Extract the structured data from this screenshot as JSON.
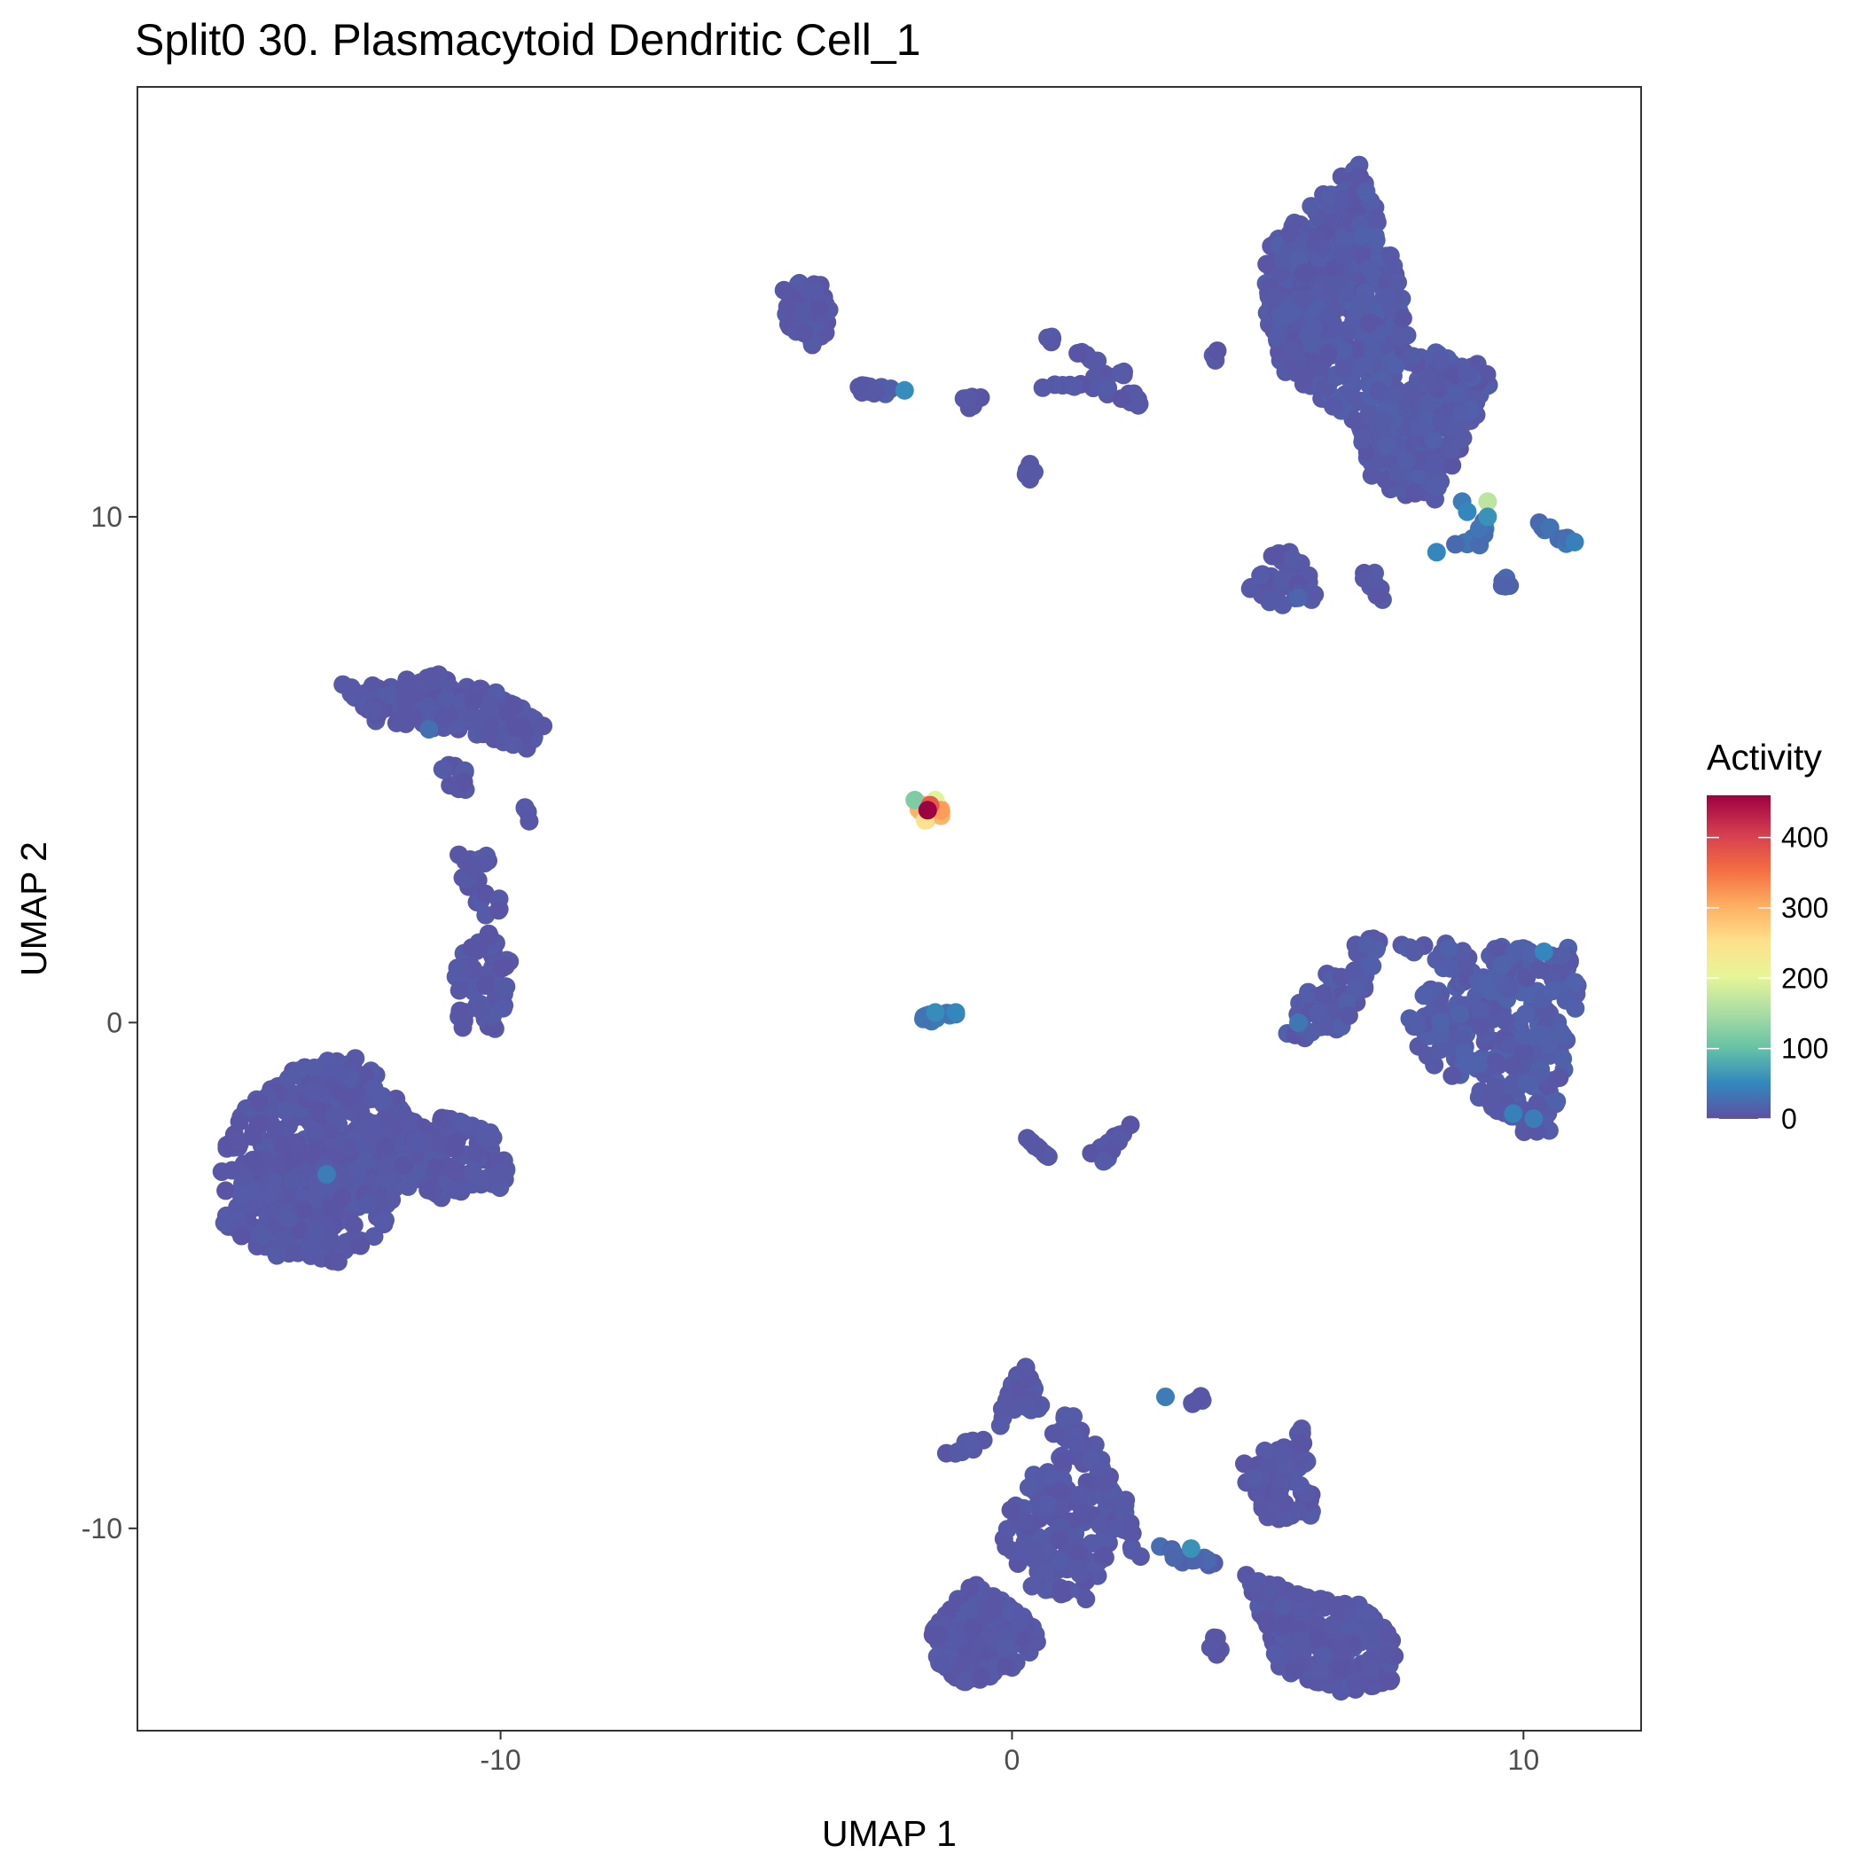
{
  "chart_data": {
    "type": "scatter",
    "title": "Split0 30. Plasmacytoid Dendritic Cell_1",
    "xlabel": "UMAP 1",
    "ylabel": "UMAP 2",
    "xlim": [
      -17.1,
      12.3
    ],
    "ylim": [
      -14.0,
      18.5
    ],
    "x_ticks": [
      -10,
      0,
      10
    ],
    "x_tick_labels": [
      "-10",
      "0",
      "10"
    ],
    "y_ticks": [
      -10,
      0,
      10
    ],
    "y_tick_labels": [
      "-10",
      "0",
      "10"
    ],
    "grid": false,
    "legend": {
      "title": "Activity",
      "position": "right",
      "ticks": [
        0,
        100,
        200,
        300,
        400
      ],
      "tick_labels": [
        "0",
        "100",
        "200",
        "300",
        "400"
      ],
      "range": [
        0,
        460
      ],
      "colormap": "Spectral (reversed)",
      "colors": [
        "#5E4FA2",
        "#3288BD",
        "#66C2A5",
        "#ABDDA4",
        "#E6F598",
        "#FEE08B",
        "#FDAE61",
        "#F46D43",
        "#D53E4F",
        "#9E0142"
      ]
    },
    "clusters": [
      {
        "shape": [
          [
            -15.5,
            -2.7
          ],
          [
            -15.4,
            -4.0
          ],
          [
            -14.5,
            -4.6
          ],
          [
            -13.2,
            -4.8
          ],
          [
            -12.3,
            -4.1
          ],
          [
            -12.0,
            -3.2
          ],
          [
            -11.2,
            -3.5
          ],
          [
            -10.0,
            -3.3
          ],
          [
            -9.7,
            -2.6
          ],
          [
            -10.3,
            -2.0
          ],
          [
            -11.8,
            -1.8
          ],
          [
            -12.8,
            -0.6
          ],
          [
            -14.0,
            -0.9
          ],
          [
            -15.0,
            -1.7
          ]
        ],
        "count": 620,
        "activity": 8
      },
      {
        "shape": [
          [
            -10.8,
            -0.1
          ],
          [
            -10.0,
            -0.2
          ],
          [
            -9.8,
            1.2
          ],
          [
            -10.4,
            2.0
          ],
          [
            -10.9,
            1.1
          ]
        ],
        "count": 70,
        "activity": 8
      },
      {
        "shape": [
          [
            -10.2,
            1.8
          ],
          [
            -9.9,
            2.5
          ],
          [
            -10.4,
            3.6
          ],
          [
            -10.9,
            3.6
          ],
          [
            -10.7,
            2.6
          ]
        ],
        "count": 20,
        "activity": 8
      },
      {
        "shape": [
          [
            -13.1,
            6.7
          ],
          [
            -11.2,
            6.9
          ],
          [
            -10.0,
            6.5
          ],
          [
            -9.1,
            5.9
          ],
          [
            -9.5,
            5.4
          ],
          [
            -11.0,
            5.8
          ],
          [
            -12.4,
            5.9
          ]
        ],
        "count": 190,
        "activity": 8
      },
      {
        "shape": [
          [
            -11.3,
            5.2
          ],
          [
            -10.6,
            5.0
          ],
          [
            -10.5,
            4.3
          ],
          [
            -11.0,
            4.6
          ]
        ],
        "count": 14,
        "activity": 8
      },
      {
        "shape": [
          [
            -9.6,
            4.3
          ],
          [
            -9.2,
            4.2
          ],
          [
            -9.4,
            3.9
          ]
        ],
        "count": 4,
        "activity": 8
      },
      {
        "shape": [
          [
            -4.5,
            14.7
          ],
          [
            -3.7,
            14.6
          ],
          [
            -3.5,
            13.9
          ],
          [
            -3.8,
            13.3
          ],
          [
            -4.4,
            13.8
          ]
        ],
        "count": 60,
        "activity": 8
      },
      {
        "shape": [
          [
            -3.2,
            12.6
          ],
          [
            -2.3,
            12.6
          ],
          [
            -2.4,
            12.3
          ],
          [
            -3.0,
            12.4
          ]
        ],
        "count": 14,
        "activity": 10
      },
      {
        "shape": [
          [
            -1.0,
            12.4
          ],
          [
            -0.4,
            12.5
          ],
          [
            -0.8,
            12.0
          ]
        ],
        "count": 7,
        "activity": 8
      },
      {
        "shape": [
          [
            0.3,
            12.5
          ],
          [
            1.6,
            12.8
          ],
          [
            2.2,
            13.0
          ],
          [
            2.6,
            12.1
          ],
          [
            2.0,
            12.4
          ],
          [
            0.9,
            12.6
          ]
        ],
        "count": 26,
        "activity": 8
      },
      {
        "shape": [
          [
            1.1,
            13.3
          ],
          [
            1.8,
            13.2
          ],
          [
            1.6,
            12.9
          ]
        ],
        "count": 6,
        "activity": 8
      },
      {
        "shape": [
          [
            0.6,
            13.6
          ],
          [
            0.9,
            13.6
          ],
          [
            0.8,
            13.4
          ]
        ],
        "count": 4,
        "activity": 8
      },
      {
        "shape": [
          [
            0.2,
            11.1
          ],
          [
            0.5,
            11.0
          ],
          [
            0.3,
            10.6
          ]
        ],
        "count": 5,
        "activity": 8
      },
      {
        "shape": [
          [
            3.7,
            13.3
          ],
          [
            4.2,
            13.3
          ],
          [
            3.9,
            12.8
          ]
        ],
        "count": 4,
        "activity": 8
      },
      {
        "shape": [
          [
            5.0,
            15.3
          ],
          [
            6.2,
            16.5
          ],
          [
            6.8,
            17.1
          ],
          [
            7.4,
            15.2
          ],
          [
            7.9,
            13.3
          ],
          [
            8.8,
            13.2
          ],
          [
            9.5,
            12.8
          ],
          [
            9.0,
            11.8
          ],
          [
            8.5,
            10.8
          ],
          [
            8.2,
            10.2
          ],
          [
            7.6,
            10.4
          ],
          [
            7.0,
            10.8
          ],
          [
            6.8,
            11.7
          ],
          [
            6.2,
            12.2
          ],
          [
            5.3,
            12.9
          ],
          [
            4.9,
            13.8
          ]
        ],
        "count": 760,
        "activity": 10
      },
      {
        "shape": [
          [
            4.6,
            8.5
          ],
          [
            5.3,
            9.6
          ],
          [
            5.8,
            8.9
          ],
          [
            6.0,
            8.4
          ],
          [
            5.3,
            8.2
          ]
        ],
        "count": 45,
        "activity": 8
      },
      {
        "shape": [
          [
            6.8,
            8.9
          ],
          [
            7.1,
            9.0
          ],
          [
            7.3,
            8.2
          ],
          [
            6.9,
            8.5
          ]
        ],
        "count": 8,
        "activity": 8
      },
      {
        "shape": [
          [
            8.3,
            9.4
          ],
          [
            9.1,
            9.7
          ],
          [
            9.4,
            10.3
          ],
          [
            9.2,
            9.4
          ]
        ],
        "count": 12,
        "activity": 30
      },
      {
        "shape": [
          [
            9.5,
            8.9
          ],
          [
            9.8,
            8.7
          ],
          [
            9.6,
            8.4
          ]
        ],
        "count": 6,
        "activity": 20
      },
      {
        "shape": [
          [
            10.3,
            9.9
          ],
          [
            11.0,
            9.6
          ],
          [
            10.9,
            9.4
          ],
          [
            10.4,
            9.7
          ]
        ],
        "count": 9,
        "activity": 30
      },
      {
        "shape": [
          [
            5.5,
            0.4
          ],
          [
            6.8,
            1.7
          ],
          [
            7.3,
            1.8
          ],
          [
            7.0,
            0.8
          ],
          [
            6.4,
            -0.2
          ],
          [
            5.3,
            -0.4
          ]
        ],
        "count": 70,
        "activity": 10
      },
      {
        "shape": [
          [
            7.5,
            1.6
          ],
          [
            10.0,
            1.5
          ],
          [
            10.9,
            1.5
          ],
          [
            11.1,
            0.7
          ],
          [
            10.9,
            -0.6
          ],
          [
            10.5,
            -2.4
          ],
          [
            9.9,
            -2.2
          ],
          [
            9.1,
            -1.6
          ],
          [
            8.2,
            -0.8
          ],
          [
            7.7,
            -0.2
          ],
          [
            7.8,
            0.5
          ],
          [
            8.5,
            1.0
          ]
        ],
        "count": 280,
        "activity": 12
      },
      {
        "shape": [
          [
            -1.9,
            4.3
          ],
          [
            -1.5,
            4.4
          ],
          [
            -1.3,
            4.1
          ],
          [
            -1.7,
            4.0
          ]
        ],
        "count": 22,
        "activity": 300
      },
      {
        "shape": [
          [
            -1.9,
            0.1
          ],
          [
            -1.2,
            0.3
          ],
          [
            -1.0,
            0.1
          ],
          [
            -1.5,
            0.0
          ]
        ],
        "count": 12,
        "activity": 40
      },
      {
        "shape": [
          [
            0.2,
            -2.2
          ],
          [
            0.9,
            -2.8
          ],
          [
            0.5,
            -2.5
          ]
        ],
        "count": 10,
        "activity": 8
      },
      {
        "shape": [
          [
            1.5,
            -2.6
          ],
          [
            2.3,
            -2.0
          ],
          [
            2.6,
            -1.6
          ],
          [
            1.8,
            -2.8
          ]
        ],
        "count": 18,
        "activity": 8
      },
      {
        "shape": [
          [
            -1.6,
            -12.1
          ],
          [
            -0.8,
            -11.0
          ],
          [
            0.2,
            -11.7
          ],
          [
            0.6,
            -12.2
          ],
          [
            0.0,
            -12.8
          ],
          [
            -1.0,
            -13.1
          ],
          [
            -1.5,
            -12.6
          ]
        ],
        "count": 230,
        "activity": 8
      },
      {
        "shape": [
          [
            -0.3,
            -10.1
          ],
          [
            0.5,
            -8.7
          ],
          [
            1.1,
            -7.6
          ],
          [
            1.8,
            -8.5
          ],
          [
            2.1,
            -10.0
          ],
          [
            1.5,
            -11.5
          ],
          [
            0.4,
            -11.2
          ]
        ],
        "count": 160,
        "activity": 8
      },
      {
        "shape": [
          [
            -1.7,
            -8.6
          ],
          [
            -0.2,
            -8.0
          ],
          [
            0.6,
            -7.6
          ],
          [
            0.2,
            -6.6
          ],
          [
            -0.6,
            -8.5
          ]
        ],
        "count": 45,
        "activity": 8
      },
      {
        "shape": [
          [
            1.4,
            -8.3
          ],
          [
            2.2,
            -9.3
          ],
          [
            2.6,
            -10.8
          ],
          [
            2.0,
            -10.0
          ],
          [
            1.7,
            -9.2
          ]
        ],
        "count": 25,
        "activity": 8
      },
      {
        "shape": [
          [
            2.8,
            -10.3
          ],
          [
            3.6,
            -10.5
          ],
          [
            4.3,
            -10.6
          ],
          [
            3.5,
            -10.9
          ]
        ],
        "count": 15,
        "activity": 20
      },
      {
        "shape": [
          [
            3.4,
            -7.3
          ],
          [
            3.8,
            -7.4
          ],
          [
            3.6,
            -7.8
          ]
        ],
        "count": 6,
        "activity": 8
      },
      {
        "shape": [
          [
            4.3,
            -8.9
          ],
          [
            5.7,
            -7.8
          ],
          [
            5.9,
            -9.8
          ],
          [
            5.0,
            -9.9
          ]
        ],
        "count": 80,
        "activity": 8
      },
      {
        "shape": [
          [
            4.5,
            -10.8
          ],
          [
            5.6,
            -11.3
          ],
          [
            6.8,
            -11.5
          ],
          [
            7.5,
            -12.2
          ],
          [
            7.5,
            -13.0
          ],
          [
            6.4,
            -13.3
          ],
          [
            5.1,
            -12.7
          ],
          [
            4.9,
            -11.8
          ]
        ],
        "count": 240,
        "activity": 8
      },
      {
        "shape": [
          [
            3.7,
            -12.0
          ],
          [
            4.1,
            -12.8
          ],
          [
            4.3,
            -12.2
          ]
        ],
        "count": 6,
        "activity": 8
      }
    ],
    "outliers": [
      {
        "x": 9.3,
        "y": 10.3,
        "activity": 170
      },
      {
        "x": 9.3,
        "y": 10.0,
        "activity": 60
      },
      {
        "x": 8.8,
        "y": 10.3,
        "activity": 40
      },
      {
        "x": 8.9,
        "y": 10.1,
        "activity": 50
      },
      {
        "x": 11.0,
        "y": 9.5,
        "activity": 45
      },
      {
        "x": 8.3,
        "y": 9.3,
        "activity": 50
      },
      {
        "x": 5.6,
        "y": 8.4,
        "activity": 20
      },
      {
        "x": -2.1,
        "y": 12.5,
        "activity": 55
      },
      {
        "x": 3.5,
        "y": -10.4,
        "activity": 60
      },
      {
        "x": 3.0,
        "y": -7.4,
        "activity": 40
      },
      {
        "x": 9.8,
        "y": -1.8,
        "activity": 45
      },
      {
        "x": 10.2,
        "y": -1.9,
        "activity": 40
      },
      {
        "x": 10.4,
        "y": 1.4,
        "activity": 50
      },
      {
        "x": 5.6,
        "y": 0.0,
        "activity": 35
      },
      {
        "x": -1.5,
        "y": 0.2,
        "activity": 55
      },
      {
        "x": -1.1,
        "y": 0.2,
        "activity": 50
      },
      {
        "x": -13.4,
        "y": -3.0,
        "activity": 40
      },
      {
        "x": -11.4,
        "y": 5.8,
        "activity": 30
      },
      {
        "x": -1.9,
        "y": 4.4,
        "activity": 120
      },
      {
        "x": -1.5,
        "y": 4.4,
        "activity": 200
      },
      {
        "x": -1.7,
        "y": 4.0,
        "activity": 250
      },
      {
        "x": -1.4,
        "y": 4.2,
        "activity": 320
      },
      {
        "x": -1.6,
        "y": 4.3,
        "activity": 380
      },
      {
        "x": -1.65,
        "y": 4.2,
        "activity": 460
      }
    ]
  }
}
